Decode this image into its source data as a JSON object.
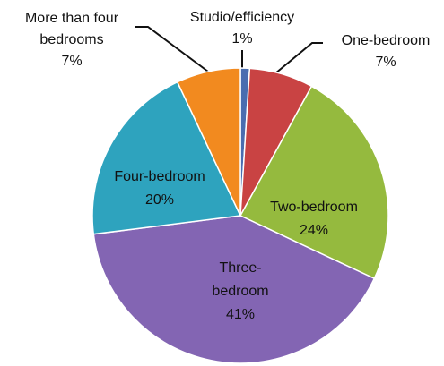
{
  "chart_data": {
    "type": "pie",
    "categories": [
      "Studio/efficiency",
      "One-bedroom",
      "Two-bedroom",
      "Three-bedroom",
      "Four-bedroom",
      "More than four bedrooms"
    ],
    "values": [
      1,
      7,
      24,
      41,
      20,
      7
    ],
    "value_labels": [
      "1%",
      "7%",
      "24%",
      "41%",
      "20%",
      "7%"
    ],
    "colors": [
      "#4a6db0",
      "#c94343",
      "#95ba3e",
      "#8365b3",
      "#2ea3be",
      "#f28a1f"
    ]
  }
}
